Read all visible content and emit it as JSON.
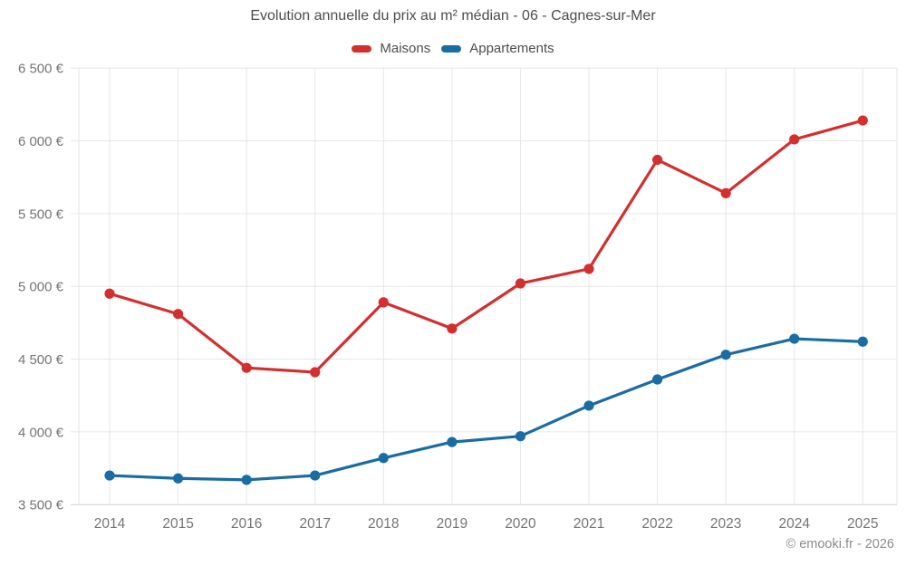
{
  "header": {
    "title": "Evolution annuelle du prix au m² médian - 06 - Cagnes-sur-Mer"
  },
  "footer": {
    "credit": "© emooki.fr - 2026"
  },
  "colors": {
    "maisons": "#d32f2f",
    "appartements": "#1a6ca4",
    "gridline": "#e6e6e6",
    "axis_line": "#cccccc",
    "tick_text": "#757575",
    "title_text": "#4d4d4d",
    "footer_text": "#8c8c8c"
  },
  "chart_data": {
    "type": "line",
    "title": "Evolution annuelle du prix au m² médian - 06 - Cagnes-sur-Mer",
    "categories": [
      2014,
      2015,
      2016,
      2017,
      2018,
      2019,
      2020,
      2021,
      2022,
      2023,
      2024,
      2025
    ],
    "series": [
      {
        "name": "Maisons",
        "color": "#d32f2f",
        "values": [
          4950,
          4810,
          4440,
          4410,
          4890,
          4710,
          5020,
          5120,
          5870,
          5640,
          6010,
          6140
        ]
      },
      {
        "name": "Appartements",
        "color": "#1a6ca4",
        "values": [
          3700,
          3680,
          3670,
          3700,
          3820,
          3930,
          3970,
          4180,
          4360,
          4530,
          4640,
          4620
        ]
      }
    ],
    "xlabel": "",
    "ylabel": "",
    "ylim": [
      3500,
      6500
    ],
    "ytick_step": 500,
    "ytick_suffix": " €",
    "grid": true,
    "legend_position": "top"
  }
}
